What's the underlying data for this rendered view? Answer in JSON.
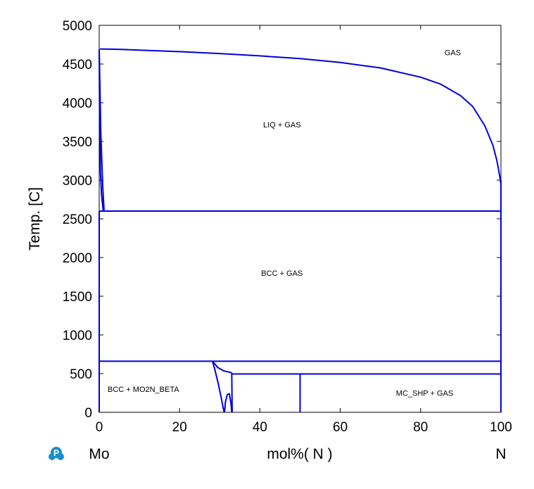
{
  "chart_data": {
    "type": "line",
    "title": "",
    "xlabel": "mol%( N )",
    "ylabel": "Temp.  [C]",
    "xlim": [
      0,
      100
    ],
    "ylim": [
      0,
      5000
    ],
    "x_ticks": [
      "0",
      "20",
      "40",
      "60",
      "80",
      "100"
    ],
    "y_ticks": [
      "0",
      "500",
      "1000",
      "1500",
      "2000",
      "2500",
      "3000",
      "3500",
      "4000",
      "4500",
      "5000"
    ],
    "x_tick_values": [
      0,
      20,
      40,
      60,
      80,
      100
    ],
    "y_tick_values": [
      0,
      500,
      1000,
      1500,
      2000,
      2500,
      3000,
      3500,
      4000,
      4500,
      5000
    ],
    "left_element": "Mo",
    "right_element": "N",
    "line_color": "#0000dd",
    "regions": [
      {
        "label": "GAS",
        "x": 88,
        "y": 4650
      },
      {
        "label": "LIQ + GAS",
        "x": 45.5,
        "y": 3720
      },
      {
        "label": "BCC + GAS",
        "x": 45.5,
        "y": 1800
      },
      {
        "label": "BCC + MO2N_BETA",
        "x": 11,
        "y": 300
      },
      {
        "label": "MC_SHP + GAS",
        "x": 81,
        "y": 250
      }
    ],
    "boundaries": [
      {
        "name": "gas-liquidus",
        "points": [
          [
            0.2,
            4695
          ],
          [
            5,
            4690
          ],
          [
            10,
            4680
          ],
          [
            20,
            4660
          ],
          [
            30,
            4635
          ],
          [
            40,
            4605
          ],
          [
            50,
            4570
          ],
          [
            60,
            4520
          ],
          [
            70,
            4450
          ],
          [
            80,
            4330
          ],
          [
            85,
            4240
          ],
          [
            90,
            4090
          ],
          [
            93,
            3950
          ],
          [
            96,
            3700
          ],
          [
            98,
            3450
          ],
          [
            99,
            3250
          ],
          [
            99.7,
            3050
          ],
          [
            100,
            2950
          ]
        ]
      },
      {
        "name": "mo-liquidus-left",
        "points": [
          [
            0,
            4690
          ],
          [
            0.1,
            3800
          ],
          [
            0.3,
            3100
          ],
          [
            0.6,
            2800
          ],
          [
            1,
            2610
          ]
        ]
      },
      {
        "name": "mo-liquidus-inner",
        "points": [
          [
            0,
            4690
          ],
          [
            0.4,
            3600
          ],
          [
            0.9,
            2900
          ],
          [
            1.2,
            2610
          ]
        ]
      },
      {
        "name": "eutectic-2600",
        "points": [
          [
            0,
            2600
          ],
          [
            100,
            2600
          ]
        ]
      },
      {
        "name": "mo-solvus",
        "points": [
          [
            0,
            2600
          ],
          [
            0,
            0
          ]
        ]
      },
      {
        "name": "right-edge",
        "points": [
          [
            100,
            3000
          ],
          [
            100,
            0
          ]
        ]
      },
      {
        "name": "mo2n-decomposition-660",
        "points": [
          [
            0,
            660
          ],
          [
            100,
            660
          ]
        ]
      },
      {
        "name": "mc-shp-495",
        "points": [
          [
            33,
            495
          ],
          [
            100,
            495
          ]
        ]
      },
      {
        "name": "mo2n-left-boundary",
        "points": [
          [
            28.2,
            660
          ],
          [
            28.8,
            550
          ],
          [
            29.6,
            380
          ],
          [
            30.4,
            180
          ],
          [
            30.9,
            50
          ],
          [
            31.1,
            0
          ]
        ]
      },
      {
        "name": "mo2n-upper-right",
        "points": [
          [
            28.2,
            660
          ],
          [
            29.5,
            580
          ],
          [
            31,
            535
          ],
          [
            32.3,
            520
          ],
          [
            33,
            510
          ]
        ]
      },
      {
        "name": "mo2n-right-boundary",
        "points": [
          [
            33,
            510
          ],
          [
            33.1,
            0
          ]
        ]
      },
      {
        "name": "mo2n-dome",
        "points": [
          [
            31.2,
            0
          ],
          [
            31.4,
            130
          ],
          [
            31.9,
            230
          ],
          [
            32.4,
            240
          ],
          [
            32.8,
            110
          ],
          [
            33,
            0
          ]
        ]
      },
      {
        "name": "mn-compound-line",
        "points": [
          [
            50,
            495
          ],
          [
            50,
            0
          ]
        ]
      }
    ]
  }
}
